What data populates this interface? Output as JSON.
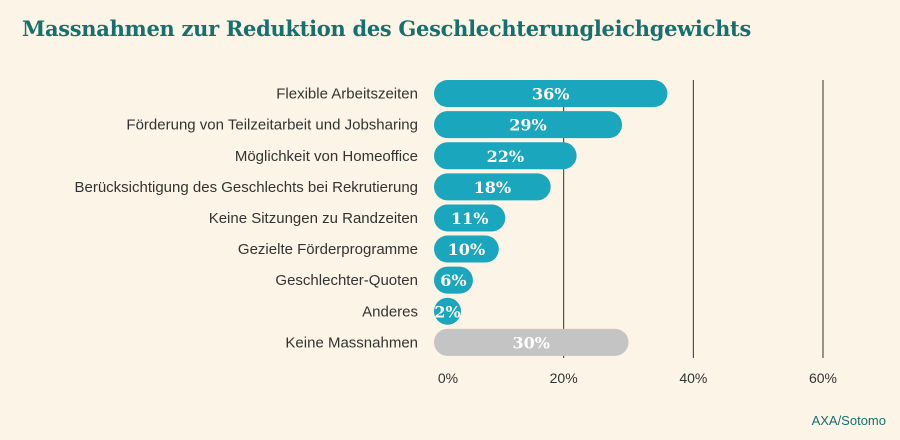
{
  "title": "Massnahmen zur Reduktion des Geschlechterungleichgewichts",
  "source": "AXA/Sotomo",
  "colors": {
    "background": "#fcf4e6",
    "title": "#16706d",
    "bar": "#1aa6bd",
    "bar_none": "#c4c4c4",
    "gridline": "#333333",
    "value_label": "#ffffff"
  },
  "chart_data": {
    "type": "bar",
    "orientation": "horizontal",
    "categories": [
      "Flexible Arbeitszeiten",
      "Förderung von Teilzeitarbeit und Jobsharing",
      "Möglichkeit von Homeoffice",
      "Berücksichtigung des Geschlechts bei Rekrutierung",
      "Keine Sitzungen zu Randzeiten",
      "Gezielte Förderprogramme",
      "Geschlechter-Quoten",
      "Anderes",
      "Keine Massnahmen"
    ],
    "values": [
      36,
      29,
      22,
      18,
      11,
      10,
      6,
      2,
      30
    ],
    "value_labels": [
      "36%",
      "29%",
      "22%",
      "18%",
      "11%",
      "10%",
      "6%",
      "2%",
      "30%"
    ],
    "highlight": [
      false,
      false,
      false,
      false,
      false,
      false,
      false,
      false,
      true
    ],
    "xlim": [
      0,
      60
    ],
    "xticks": [
      0,
      20,
      40,
      60
    ],
    "xtick_labels": [
      "0%",
      "20%",
      "40%",
      "60%"
    ],
    "grid": true
  }
}
